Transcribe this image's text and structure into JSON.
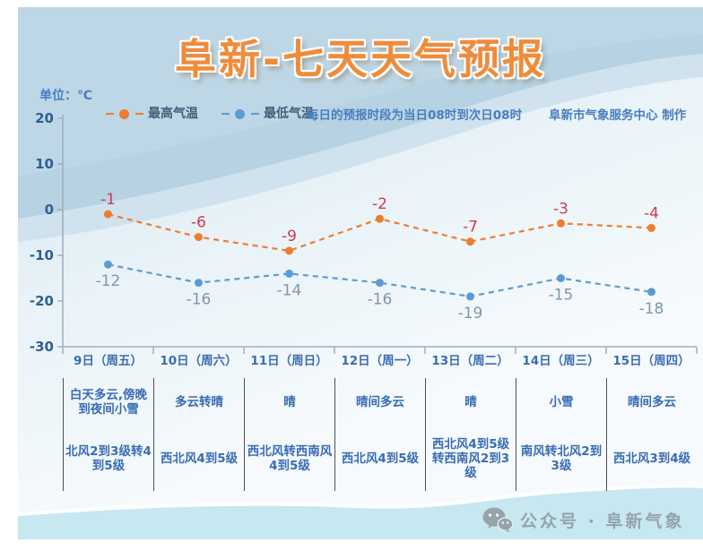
{
  "title": "阜新-七天天气预报",
  "unit_label": "单位：℃",
  "legend": [
    {
      "label": "最高气温",
      "color": "#ed7d31"
    },
    {
      "label": "最低气温",
      "color": "#5b9bd5"
    }
  ],
  "annotation": "每日的预报时段为当日08时到次日08时",
  "credit": "阜新市气象服务中心 制作",
  "footer_text": "公众号 · 阜新气象",
  "chart_data": {
    "type": "line",
    "title": "阜新-七天天气预报",
    "ylabel": "单位：℃",
    "ylim": [
      -30,
      20
    ],
    "yticks": [
      20,
      10,
      0,
      -10,
      -20,
      -30
    ],
    "grid": false,
    "line_style": "dashed",
    "legend_position": "top",
    "categories": [
      "9日（周五）",
      "10日（周六）",
      "11日（周日）",
      "12日（周一）",
      "13日（周二）",
      "14日（周三）",
      "15日（周四）"
    ],
    "series": [
      {
        "name": "最高气温",
        "values": [
          -1,
          -6,
          -9,
          -2,
          -7,
          -3,
          -4
        ],
        "color": "#ed7d31",
        "label_color": "#ce3a52"
      },
      {
        "name": "最低气温",
        "values": [
          -12,
          -16,
          -14,
          -16,
          -19,
          -15,
          -18
        ],
        "color": "#5b9bd5",
        "label_color": "#7e96ac"
      }
    ]
  },
  "table": {
    "weather": [
      "白天多云,傍晚到夜间小雪",
      "多云转晴",
      "晴",
      "晴间多云",
      "晴",
      "小雪",
      "晴间多云"
    ],
    "wind": [
      "北风2到3级转4到5级",
      "西北风4到5级",
      "西北风转西南风4到5级",
      "西北风4到5级",
      "西北风4到5级转西南风2到3级",
      "南风转北风2到3级",
      "西北风3到4级"
    ]
  },
  "colors": {
    "title_orange": "#ef8c3c",
    "high_line": "#ed7d31",
    "high_label": "#ce3a52",
    "low_line": "#5b9bd5",
    "low_label": "#7e96ac",
    "axis": "#9fb0bf",
    "axis_tick_label": "#2d5f94",
    "table_text": "#3a6cb4",
    "separator": "#4b5258",
    "footer_gray": "#96a3ab",
    "bottom_band": "#c7e7f1",
    "bg_blue": "#b7d2e2"
  }
}
